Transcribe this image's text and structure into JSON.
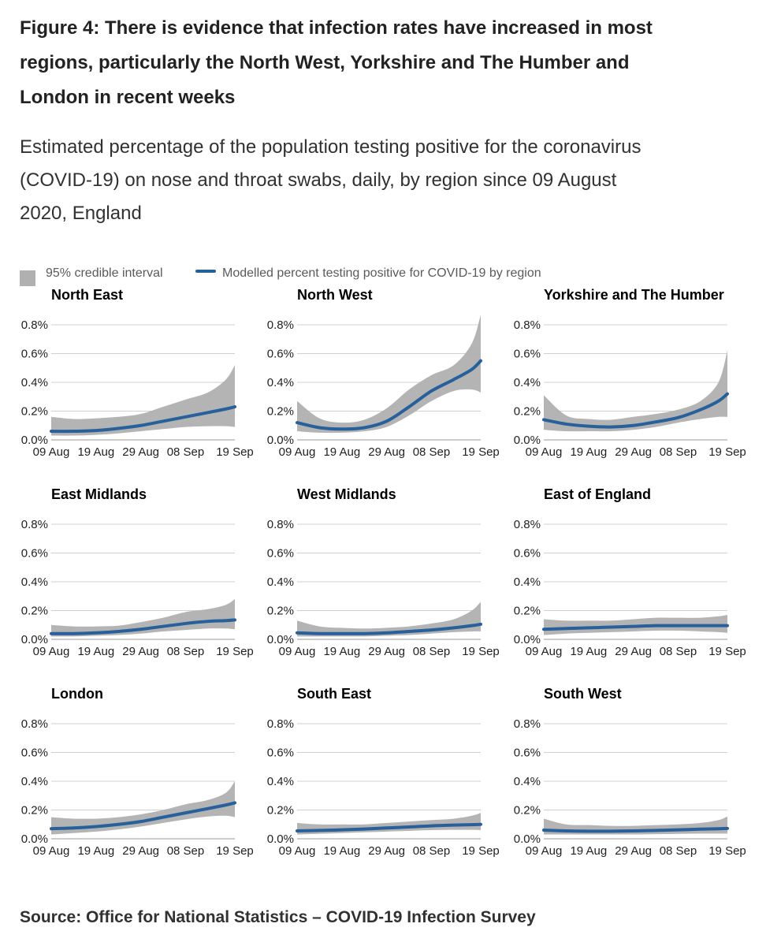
{
  "title": "Figure 4: There is evidence that infection rates have increased in most regions, particularly the North West, Yorkshire and The Humber and London in recent weeks",
  "subtitle": "Estimated percentage of the population testing positive for the coronavirus (COVID-19) on nose and throat swabs, daily, by region since 09 August 2020, England",
  "legend": {
    "interval_label": "95% credible interval",
    "line_label": "Modelled percent testing positive for COVID-19 by region"
  },
  "source": "Source: Office for National Statistics – COVID-19 Infection Survey",
  "colors": {
    "line": "#27609a",
    "band": "#b0b0b0",
    "grid": "#d0d0d0"
  },
  "chart_data": {
    "type": "line",
    "x_tick_labels": [
      "09 Aug",
      "19 Aug",
      "29 Aug",
      "08 Sep",
      "19 Sep"
    ],
    "x_tick_days": [
      0,
      10,
      20,
      30,
      41
    ],
    "y_tick_labels": [
      "0.0%",
      "0.2%",
      "0.4%",
      "0.6%",
      "0.8%"
    ],
    "y_tick_values": [
      0,
      0.2,
      0.4,
      0.6,
      0.8
    ],
    "ylim": [
      0,
      0.8
    ],
    "xlim_days": [
      0,
      41
    ],
    "sample_days": [
      0,
      5,
      10,
      15,
      20,
      25,
      30,
      35,
      39,
      41
    ],
    "panels": [
      {
        "name": "North East",
        "estimate": [
          0.06,
          0.06,
          0.065,
          0.08,
          0.1,
          0.13,
          0.16,
          0.19,
          0.215,
          0.23
        ],
        "lower": [
          0.03,
          0.03,
          0.035,
          0.045,
          0.06,
          0.075,
          0.09,
          0.095,
          0.095,
          0.09
        ],
        "upper": [
          0.16,
          0.145,
          0.15,
          0.16,
          0.18,
          0.23,
          0.28,
          0.33,
          0.42,
          0.52
        ]
      },
      {
        "name": "North West",
        "estimate": [
          0.12,
          0.085,
          0.075,
          0.085,
          0.13,
          0.23,
          0.34,
          0.42,
          0.49,
          0.55
        ],
        "lower": [
          0.06,
          0.05,
          0.05,
          0.06,
          0.09,
          0.17,
          0.27,
          0.34,
          0.35,
          0.33
        ],
        "upper": [
          0.27,
          0.15,
          0.12,
          0.14,
          0.22,
          0.35,
          0.45,
          0.52,
          0.67,
          0.87
        ]
      },
      {
        "name": "Yorkshire and The Humber",
        "estimate": [
          0.14,
          0.11,
          0.095,
          0.09,
          0.1,
          0.125,
          0.155,
          0.21,
          0.27,
          0.32
        ],
        "lower": [
          0.07,
          0.06,
          0.06,
          0.06,
          0.07,
          0.09,
          0.12,
          0.145,
          0.16,
          0.16
        ],
        "upper": [
          0.31,
          0.17,
          0.145,
          0.14,
          0.16,
          0.18,
          0.21,
          0.27,
          0.4,
          0.62
        ]
      },
      {
        "name": "East Midlands",
        "estimate": [
          0.04,
          0.04,
          0.045,
          0.055,
          0.07,
          0.09,
          0.11,
          0.125,
          0.13,
          0.135
        ],
        "lower": [
          0.02,
          0.02,
          0.025,
          0.03,
          0.04,
          0.055,
          0.065,
          0.075,
          0.075,
          0.07
        ],
        "upper": [
          0.1,
          0.09,
          0.09,
          0.095,
          0.12,
          0.15,
          0.19,
          0.21,
          0.24,
          0.28
        ]
      },
      {
        "name": "West Midlands",
        "estimate": [
          0.045,
          0.04,
          0.04,
          0.04,
          0.045,
          0.055,
          0.065,
          0.08,
          0.095,
          0.105
        ],
        "lower": [
          0.02,
          0.02,
          0.02,
          0.02,
          0.025,
          0.03,
          0.04,
          0.05,
          0.055,
          0.055
        ],
        "upper": [
          0.13,
          0.09,
          0.08,
          0.075,
          0.08,
          0.09,
          0.11,
          0.14,
          0.2,
          0.26
        ]
      },
      {
        "name": "East of England",
        "estimate": [
          0.07,
          0.075,
          0.08,
          0.085,
          0.09,
          0.095,
          0.095,
          0.095,
          0.095,
          0.095
        ],
        "lower": [
          0.03,
          0.04,
          0.045,
          0.05,
          0.055,
          0.06,
          0.06,
          0.055,
          0.05,
          0.045
        ],
        "upper": [
          0.14,
          0.13,
          0.13,
          0.13,
          0.14,
          0.15,
          0.15,
          0.15,
          0.16,
          0.17
        ]
      },
      {
        "name": "London",
        "estimate": [
          0.07,
          0.075,
          0.085,
          0.1,
          0.12,
          0.15,
          0.18,
          0.21,
          0.235,
          0.25
        ],
        "lower": [
          0.03,
          0.04,
          0.05,
          0.065,
          0.085,
          0.11,
          0.135,
          0.155,
          0.16,
          0.15
        ],
        "upper": [
          0.15,
          0.14,
          0.14,
          0.15,
          0.17,
          0.2,
          0.24,
          0.27,
          0.32,
          0.4
        ]
      },
      {
        "name": "South East",
        "estimate": [
          0.055,
          0.058,
          0.062,
          0.068,
          0.075,
          0.082,
          0.09,
          0.095,
          0.098,
          0.1
        ],
        "lower": [
          0.03,
          0.035,
          0.04,
          0.045,
          0.05,
          0.055,
          0.06,
          0.062,
          0.062,
          0.06
        ],
        "upper": [
          0.11,
          0.1,
          0.1,
          0.1,
          0.11,
          0.12,
          0.13,
          0.14,
          0.16,
          0.18
        ]
      },
      {
        "name": "South West",
        "estimate": [
          0.06,
          0.055,
          0.053,
          0.053,
          0.055,
          0.058,
          0.062,
          0.067,
          0.07,
          0.072
        ],
        "lower": [
          0.03,
          0.03,
          0.03,
          0.03,
          0.03,
          0.032,
          0.034,
          0.036,
          0.036,
          0.035
        ],
        "upper": [
          0.14,
          0.1,
          0.095,
          0.09,
          0.09,
          0.095,
          0.1,
          0.11,
          0.13,
          0.155
        ]
      }
    ]
  }
}
